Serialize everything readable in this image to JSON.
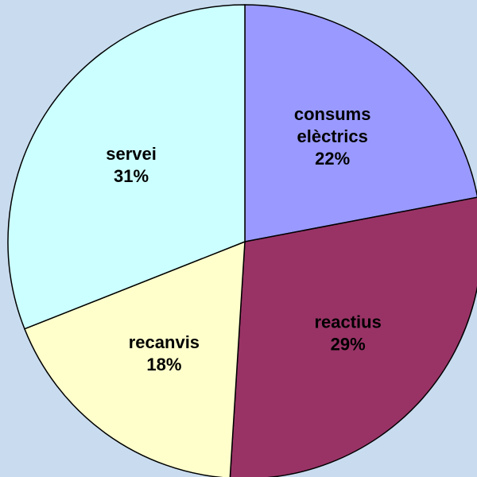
{
  "chart_data": {
    "type": "pie",
    "categories": [
      "consums elèctrics",
      "reactius",
      "recanvis",
      "servei"
    ],
    "values": [
      22,
      29,
      18,
      31
    ],
    "value_labels": [
      "22%",
      "29%",
      "18%",
      "31%"
    ],
    "colors": [
      "#9999ff",
      "#993366",
      "#ffffcc",
      "#ccffff"
    ]
  }
}
